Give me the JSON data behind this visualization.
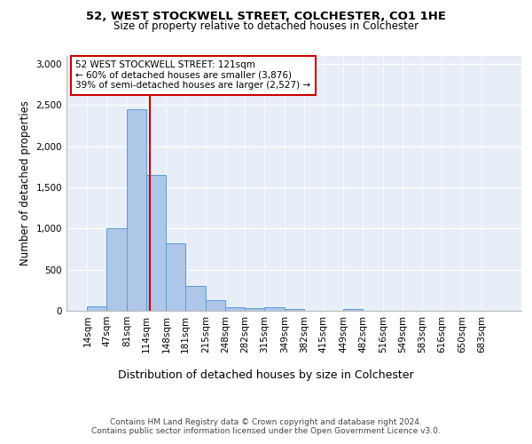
{
  "title_line1": "52, WEST STOCKWELL STREET, COLCHESTER, CO1 1HE",
  "title_line2": "Size of property relative to detached houses in Colchester",
  "xlabel": "Distribution of detached houses by size in Colchester",
  "ylabel": "Number of detached properties",
  "footer_line1": "Contains HM Land Registry data © Crown copyright and database right 2024.",
  "footer_line2": "Contains public sector information licensed under the Open Government Licence v3.0.",
  "annotation_line1": "52 WEST STOCKWELL STREET: 121sqm",
  "annotation_line2": "← 60% of detached houses are smaller (3,876)",
  "annotation_line3": "39% of semi-detached houses are larger (2,527) →",
  "property_size": 121,
  "bar_edges": [
    14,
    47,
    81,
    114,
    148,
    181,
    215,
    248,
    282,
    315,
    349,
    382,
    415,
    449,
    482,
    516,
    549,
    583,
    616,
    650,
    683
  ],
  "bar_heights": [
    50,
    1000,
    2450,
    1650,
    820,
    300,
    130,
    40,
    35,
    40,
    25,
    0,
    0,
    25,
    0,
    0,
    0,
    0,
    0,
    0,
    0
  ],
  "bar_color": "#aec6e8",
  "bar_edge_color": "#5b9bd5",
  "red_line_color": "#cc0000",
  "annotation_box_edge": "#cc0000",
  "background_color": "#e8eef8",
  "ylim": [
    0,
    3100
  ],
  "yticks": [
    0,
    500,
    1000,
    1500,
    2000,
    2500,
    3000
  ],
  "figsize": [
    6.0,
    5.0
  ],
  "dpi": 100
}
